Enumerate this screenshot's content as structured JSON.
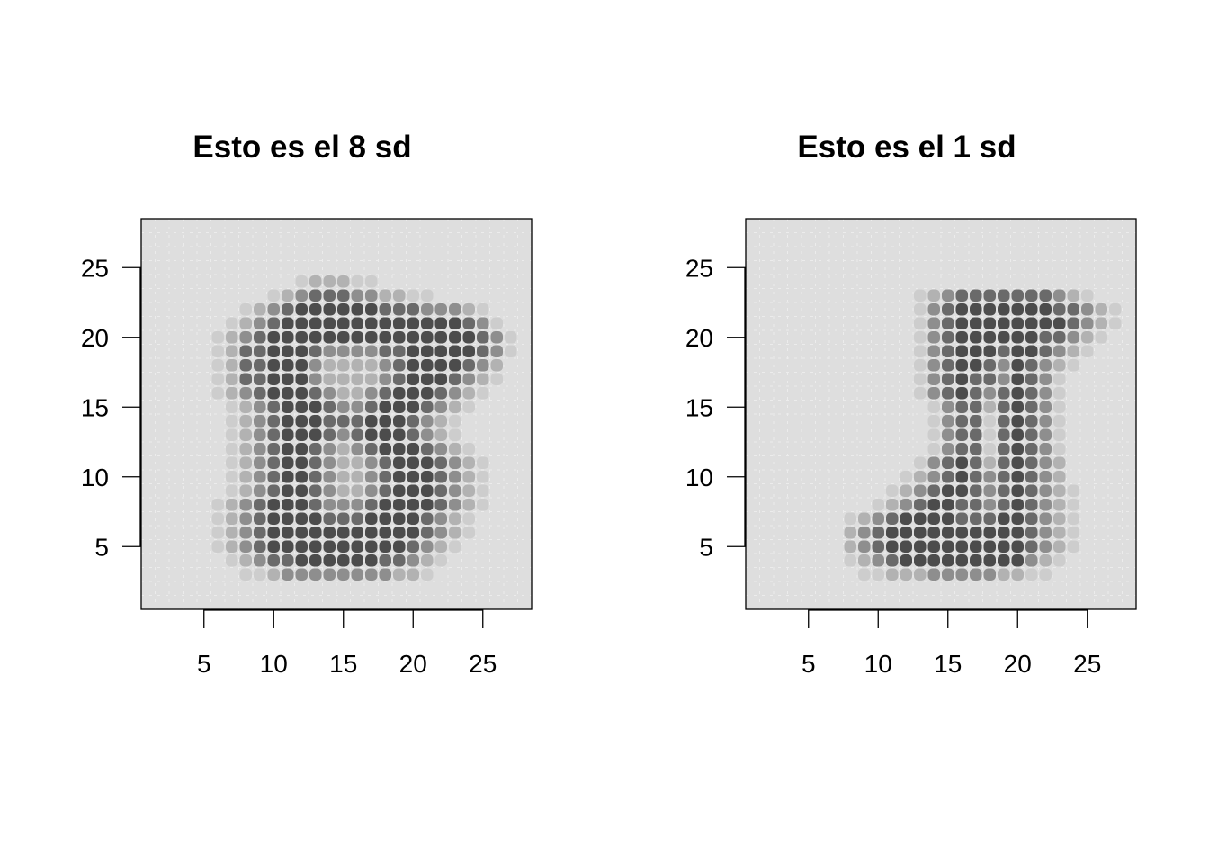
{
  "chart_data": [
    {
      "type": "heatmap",
      "title": "Esto es el 8 sd",
      "xlabel": "",
      "ylabel": "",
      "xlim": [
        0.5,
        28.5
      ],
      "ylim": [
        0.5,
        28.5
      ],
      "x_ticks": [
        5,
        10,
        15,
        20,
        25
      ],
      "y_ticks": [
        5,
        10,
        15,
        20,
        25
      ],
      "grid_size": [
        28,
        28
      ],
      "colormap": "grayscale (light = low, dark = high)",
      "rows_top_to_bottom": [
        "0000000000000000000000000000",
        "0000000000000000000000000000",
        "0000000000000000000000000000",
        "0000000000000000000000000000",
        "0000000000012221100000000000",
        "0000000001234443322110000000",
        "0000000123455555544433321000",
        "0000001234555555555555543100",
        "0000012345555555555555554310",
        "0000012445554333344555554310",
        "0000012445553222234555543200",
        "0000012445553222234555432100",
        "0000012345554322345554321000",
        "0000001234555433455543210000",
        "0000001234555444555432100000",
        "0000001234555434555432100000",
        "0000001234554323455543210000",
        "0000001234554322345554321000",
        "0000001234554322345554321000",
        "0000001234554322345554321000",
        "0000012345554333455554321000",
        "0000012345555444555543210000",
        "0000012345555555555543210000",
        "0000012345555555555432100000",
        "0000001234455555544321000000",
        "0000000112333333332210000000",
        "0000000000000000000000000000",
        "0000000000000000000000000000"
      ]
    },
    {
      "type": "heatmap",
      "title": "Esto es el 1 sd",
      "xlabel": "",
      "ylabel": "",
      "xlim": [
        0.5,
        28.5
      ],
      "ylim": [
        0.5,
        28.5
      ],
      "x_ticks": [
        5,
        10,
        15,
        20,
        25
      ],
      "y_ticks": [
        5,
        10,
        15,
        20,
        25
      ],
      "grid_size": [
        28,
        28
      ],
      "colormap": "grayscale (light = low, dark = high)",
      "rows_top_to_bottom": [
        "0000000000000000000000000000",
        "0000000000000000000000000000",
        "0000000000000000000000000000",
        "0000000000000000000000000000",
        "0000000000000000000000000000",
        "0000000000001234444444321000",
        "0000000000001345555555443210",
        "0000000000001345555555543210",
        "0000000000001345555554432100",
        "0000000000001345554554321000",
        "0000000000001345543543210000",
        "0000000000001345443543100000",
        "0000000000001345434543100000",
        "0000000000000134424543100000",
        "0000000000000134414543100000",
        "0000000000000134414543100000",
        "0000000000000134414543100000",
        "0000000000001345424543200000",
        "0000000000012345434543200000",
        "0000000000123455434543210000",
        "0000000001234554434543210000",
        "0000000123455554445543210000",
        "0000000234555555555543210000",
        "0000000234555555555543210000",
        "0000000123455555555532100000",
        "0000000011222333332211000000",
        "0000000000000000000000000000",
        "0000000000000000000000000000"
      ]
    }
  ]
}
